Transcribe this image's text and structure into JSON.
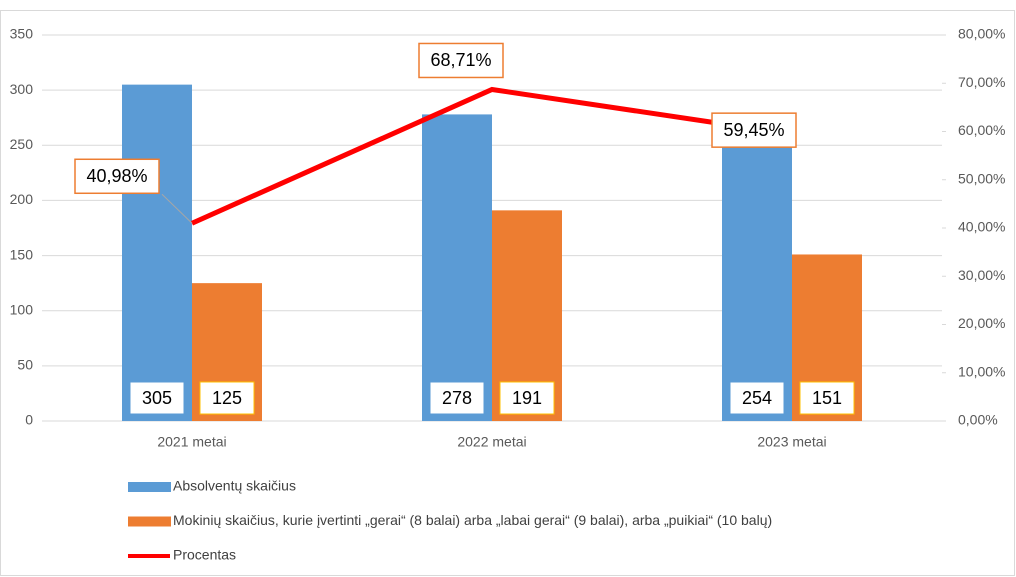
{
  "chart_data": {
    "type": "bar-line",
    "categories": [
      "2021 metai",
      "2022 metai",
      "2023 metai"
    ],
    "series": [
      {
        "name": "Absolventų skaičius",
        "color": "#5b9bd5",
        "type": "bar",
        "values": [
          305,
          278,
          254
        ]
      },
      {
        "name": "Mokinių skaičius, kurie įvertinti „gerai“ (8 balai) arba „labai gerai“ (9 balai), arba „puikiai“ (10 balų)",
        "color": "#ed7d31",
        "type": "bar",
        "values": [
          125,
          191,
          151
        ]
      },
      {
        "name": "Procentas",
        "color": "#ff0000",
        "type": "line",
        "axis": "y2",
        "values": [
          40.98,
          68.71,
          59.45
        ],
        "value_labels": [
          "40,98%",
          "68,71%",
          "59,45%"
        ]
      }
    ],
    "ylim": [
      0,
      350
    ],
    "yticks": [
      0,
      50,
      100,
      150,
      200,
      250,
      300,
      350
    ],
    "y2lim": [
      0,
      80
    ],
    "y2ticks": [
      {
        "value": 0,
        "label": "0,00%"
      },
      {
        "value": 10,
        "label": "10,00%"
      },
      {
        "value": 20,
        "label": "20,00%"
      },
      {
        "value": 30,
        "label": "30,00%"
      },
      {
        "value": 40,
        "label": "40,00%"
      },
      {
        "value": 50,
        "label": "50,00%"
      },
      {
        "value": 60,
        "label": "60,00%"
      },
      {
        "value": 70,
        "label": "70,00%"
      },
      {
        "value": 80,
        "label": "80,00%"
      }
    ],
    "grid": true,
    "legend": "bottom"
  }
}
